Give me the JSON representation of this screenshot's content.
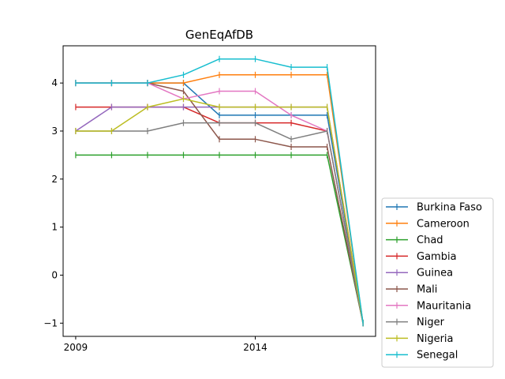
{
  "chart_data": {
    "type": "line",
    "title": "GenEqAfDB",
    "xlabel": "",
    "ylabel": "",
    "x": [
      2009,
      2010,
      2011,
      2012,
      2013,
      2014,
      2015,
      2016,
      2017
    ],
    "xlim": [
      2008.65,
      2017.35
    ],
    "ylim": [
      -1.275,
      4.775
    ],
    "xticks": [
      2009,
      2014
    ],
    "xtick_labels": [
      "2009",
      "2014"
    ],
    "yticks": [
      -1,
      0,
      1,
      2,
      3,
      4
    ],
    "ytick_labels": [
      "−1",
      "0",
      "1",
      "2",
      "3",
      "4"
    ],
    "grid": false,
    "legend_position": "outside right, bottom",
    "marker": "vertical tick (+)",
    "series": [
      {
        "name": "Burkina Faso",
        "color": "#1f77b4",
        "values": [
          4.0,
          4.0,
          4.0,
          4.0,
          3.33,
          3.33,
          3.33,
          3.33,
          -1.0
        ]
      },
      {
        "name": "Cameroon",
        "color": "#ff7f0e",
        "values": [
          4.0,
          4.0,
          4.0,
          4.0,
          4.17,
          4.17,
          4.17,
          4.17,
          -1.0
        ]
      },
      {
        "name": "Chad",
        "color": "#2ca02c",
        "values": [
          2.5,
          2.5,
          2.5,
          2.5,
          2.5,
          2.5,
          2.5,
          2.5,
          -1.0
        ]
      },
      {
        "name": "Gambia",
        "color": "#d62728",
        "values": [
          3.5,
          3.5,
          3.5,
          3.5,
          3.17,
          3.17,
          3.17,
          3.0,
          -1.0
        ]
      },
      {
        "name": "Guinea",
        "color": "#9467bd",
        "values": [
          3.0,
          3.5,
          3.5,
          3.5,
          3.5,
          3.5,
          3.5,
          3.5,
          -1.0
        ]
      },
      {
        "name": "Mali",
        "color": "#8c564b",
        "values": [
          4.0,
          4.0,
          4.0,
          3.83,
          2.83,
          2.83,
          2.67,
          2.67,
          -1.0
        ]
      },
      {
        "name": "Mauritania",
        "color": "#e377c2",
        "values": [
          4.0,
          4.0,
          4.0,
          3.67,
          3.83,
          3.83,
          3.33,
          3.0,
          -1.0
        ]
      },
      {
        "name": "Niger",
        "color": "#7f7f7f",
        "values": [
          3.0,
          3.0,
          3.0,
          3.17,
          3.17,
          3.17,
          2.83,
          3.0,
          -1.0
        ]
      },
      {
        "name": "Nigeria",
        "color": "#bcbd22",
        "values": [
          3.0,
          3.0,
          3.5,
          3.67,
          3.5,
          3.5,
          3.5,
          3.5,
          -1.0
        ]
      },
      {
        "name": "Senegal",
        "color": "#17becf",
        "values": [
          4.0,
          4.0,
          4.0,
          4.17,
          4.5,
          4.5,
          4.33,
          4.33,
          -1.0
        ]
      }
    ]
  }
}
